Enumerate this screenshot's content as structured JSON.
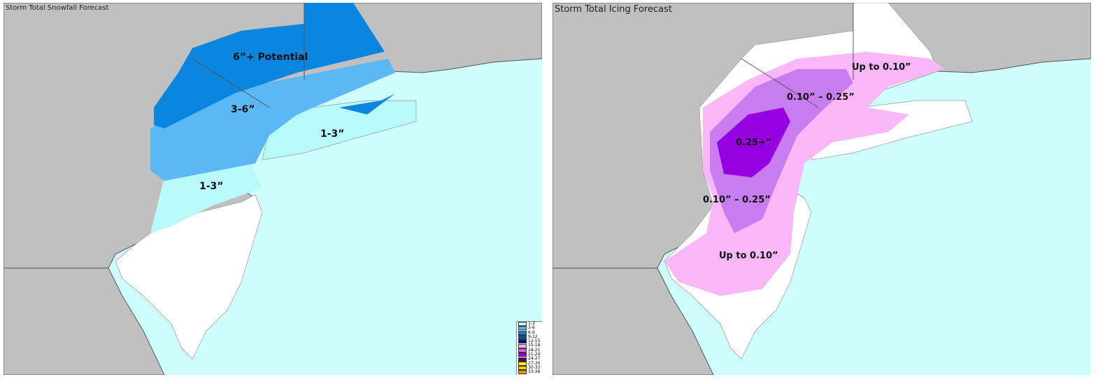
{
  "snow_map": {
    "title": "Storm Total Snowfall Forecast",
    "labels": [
      "6”+ Potential",
      "3-6”",
      "1-3”",
      "1-3”"
    ],
    "legend": [
      {
        "label": "1-3",
        "color": "#c8ffff"
      },
      {
        "label": "3-6",
        "color": "#5ab4f0"
      },
      {
        "label": "6-9",
        "color": "#0a82dc"
      },
      {
        "label": "9-12",
        "color": "#0a5096"
      },
      {
        "label": "12-15",
        "color": "#0a0a8c"
      },
      {
        "label": "15-18",
        "color": "#f0b4f0"
      },
      {
        "label": "18-21",
        "color": "#d264e6"
      },
      {
        "label": "21-24",
        "color": "#a000d2"
      },
      {
        "label": "24-27",
        "color": "#500078"
      },
      {
        "label": "27-30",
        "color": "#ffff00"
      },
      {
        "label": "30-33",
        "color": "#ffc800"
      },
      {
        "label": "33-36",
        "color": "#ff9600"
      }
    ]
  },
  "ice_map": {
    "title": "Storm Total Icing Forecast",
    "labels": [
      "Up to 0.10”",
      "0.10” – 0.25”",
      "0.25+”",
      "0.10” – 0.25”",
      "Up to 0.10”"
    ]
  },
  "colors": {
    "land": "#c0c0c0",
    "ocean": "#cdfdfd",
    "snow_heavy": "#0a86e0",
    "snow_mid": "#5cb8f5",
    "snow_light": "#b8fafa",
    "ice_light": "#f8b8f8",
    "ice_mid": "#c77cf0",
    "ice_heavy": "#9600e0"
  }
}
